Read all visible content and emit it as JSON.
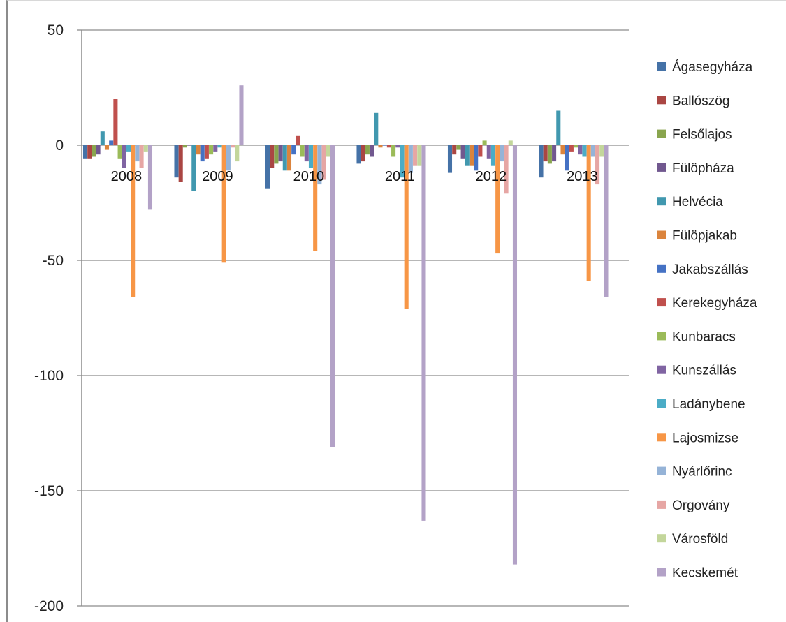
{
  "chart_data": {
    "type": "bar",
    "title": "",
    "xlabel": "",
    "ylabel": "",
    "ylim": [
      -200,
      50
    ],
    "yticks": [
      50,
      0,
      -50,
      -100,
      -150,
      -200
    ],
    "grid": true,
    "legend_position": "right",
    "categories": [
      "2008",
      "2009",
      "2010",
      "2011",
      "2012",
      "2013"
    ],
    "series": [
      {
        "name": "Ágasegyháza",
        "color": "#4572a7",
        "values": [
          -6,
          -14,
          -19,
          -8,
          -12,
          -14
        ]
      },
      {
        "name": "Ballószög",
        "color": "#aa4643",
        "values": [
          -6,
          -16,
          -10,
          -7,
          -4,
          -7
        ]
      },
      {
        "name": "Felsőlajos",
        "color": "#89a54e",
        "values": [
          -5,
          -1,
          -8,
          -4,
          -2,
          -8
        ]
      },
      {
        "name": "Fülöpháza",
        "color": "#71588f",
        "values": [
          -4,
          0,
          -7,
          -5,
          -6,
          -7
        ]
      },
      {
        "name": "Helvécia",
        "color": "#4198af",
        "values": [
          6,
          -20,
          -11,
          14,
          -9,
          15
        ]
      },
      {
        "name": "Fülöpjakab",
        "color": "#db843d",
        "values": [
          -2,
          -4,
          -11,
          -1,
          -9,
          -4
        ]
      },
      {
        "name": "Jakabszállás",
        "color": "#4572c4",
        "values": [
          2,
          -7,
          -4,
          0,
          -11,
          -11
        ]
      },
      {
        "name": "Kerekegyháza",
        "color": "#c0504d",
        "values": [
          20,
          -6,
          4,
          -1,
          -5,
          -3
        ]
      },
      {
        "name": "Kunbaracs",
        "color": "#9bbb59",
        "values": [
          -6,
          -4,
          -5,
          -5,
          2,
          -1
        ]
      },
      {
        "name": "Kunszállás",
        "color": "#8064a2",
        "values": [
          -10,
          -3,
          -7,
          -1,
          -6,
          -4
        ]
      },
      {
        "name": "Ladánybene",
        "color": "#4bacc6",
        "values": [
          -3,
          -1,
          -10,
          -14,
          -9,
          -5
        ]
      },
      {
        "name": "Lajosmizse",
        "color": "#f79646",
        "values": [
          -66,
          -51,
          -46,
          -71,
          -47,
          -59
        ]
      },
      {
        "name": "Nyárlőrinc",
        "color": "#95b3d7",
        "values": [
          -7,
          -11,
          -17,
          -12,
          -7,
          -5
        ]
      },
      {
        "name": "Orgovány",
        "color": "#e6a6a4",
        "values": [
          -10,
          -1,
          -15,
          -9,
          -21,
          -17
        ]
      },
      {
        "name": "Városföld",
        "color": "#c3d69b",
        "values": [
          -3,
          -7,
          -5,
          -9,
          2,
          -5
        ]
      },
      {
        "name": "Kecskemét",
        "color": "#b3a2c7",
        "values": [
          -28,
          26,
          -131,
          -163,
          -182,
          -66
        ]
      }
    ]
  }
}
